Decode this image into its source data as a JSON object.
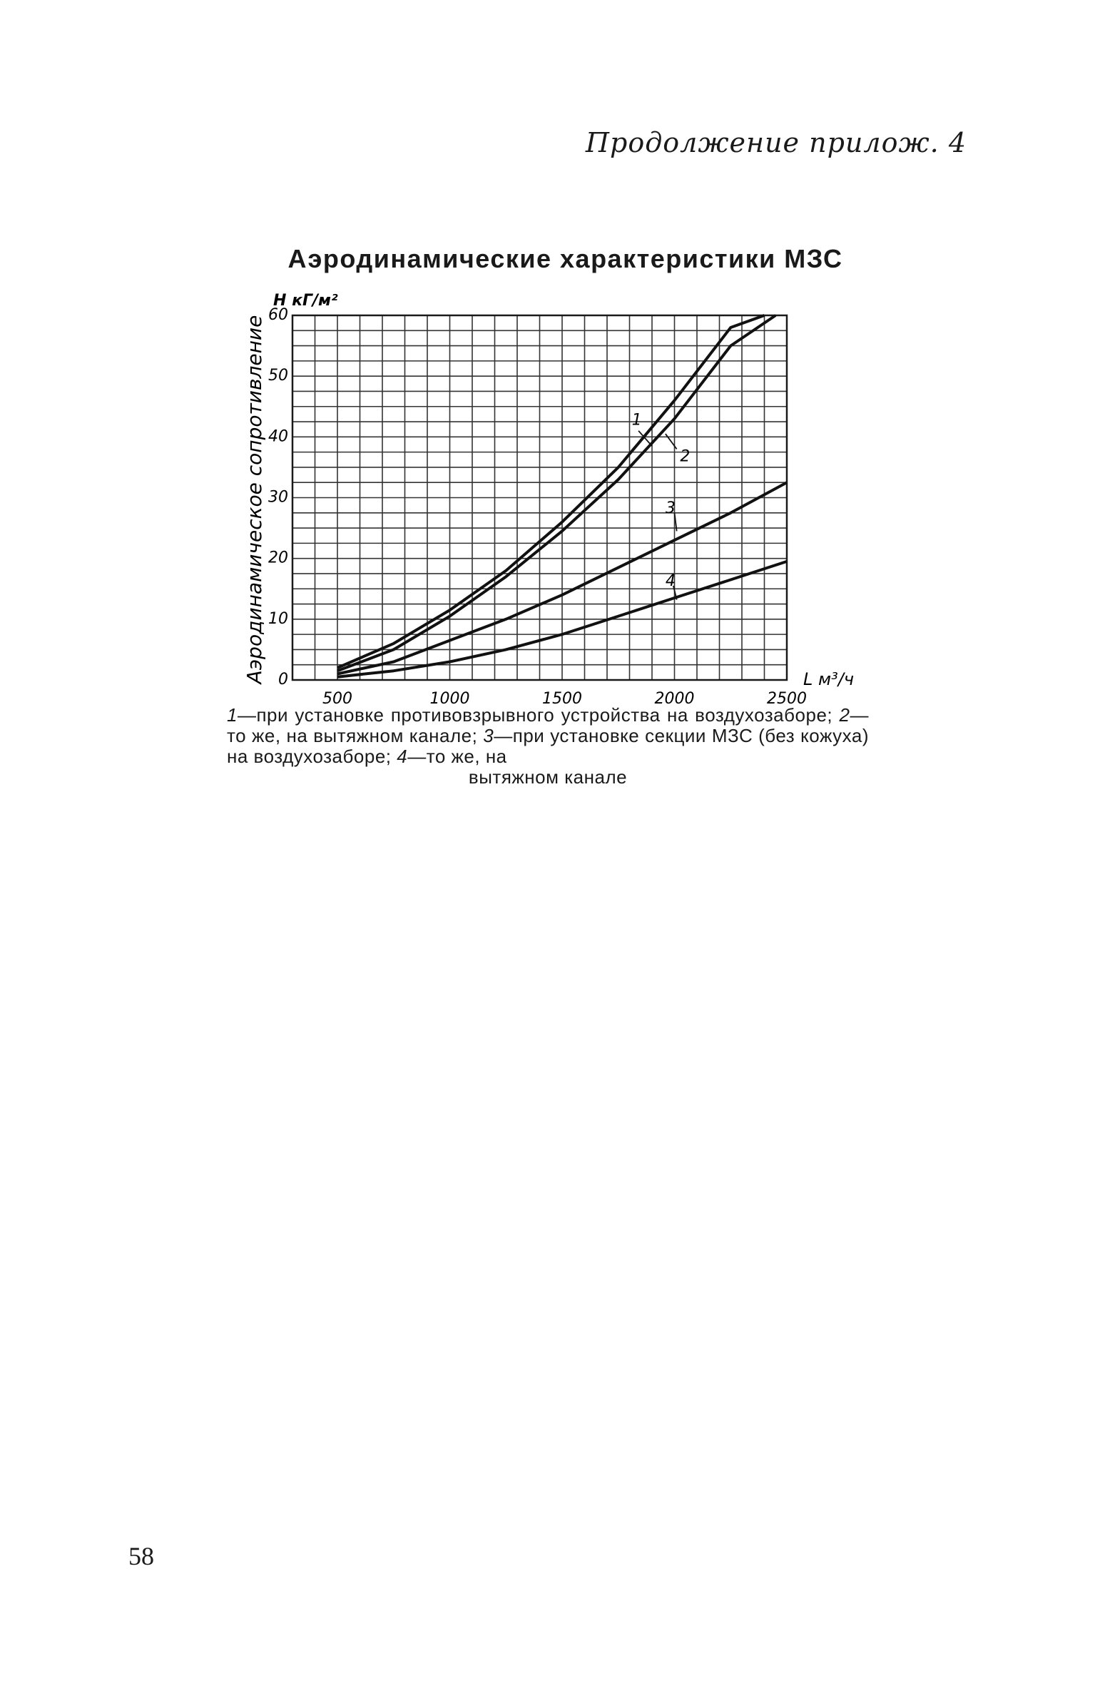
{
  "page": {
    "header": "Продолжение прилож. 4",
    "page_number": "58"
  },
  "caption": {
    "n1": "1",
    "t1": "—при установке противовзрывного устройства на воздухозаборе;",
    "n2": "2",
    "t2": "—то же, на вытяжном канале;",
    "n3": "3",
    "t3": "—при установке секции МЗС (без кожуха) на воздухозаборе;",
    "n4": "4",
    "t4": "—то же, на",
    "last": "вытяжном канале"
  },
  "chart_data": {
    "type": "line",
    "title": "Аэродинамические характеристики МЗС",
    "ylabel": "Аэродинамическое сопротивление",
    "y_unit": "H кГ/м²",
    "x_unit": "L м³/ч",
    "xlim": [
      300,
      2500
    ],
    "ylim": [
      0,
      60
    ],
    "x_tick_labels": [
      "500",
      "1000",
      "1500",
      "2000",
      "2500"
    ],
    "y_tick_labels": [
      "0",
      "10",
      "20",
      "30",
      "40",
      "50",
      "60"
    ],
    "grid": true,
    "series": [
      {
        "name": "1",
        "x": [
          500,
          750,
          1000,
          1250,
          1500,
          1750,
          2000,
          2250,
          2400
        ],
        "y": [
          2,
          6,
          11.5,
          18,
          26,
          35,
          46,
          58,
          60
        ]
      },
      {
        "name": "2",
        "x": [
          500,
          750,
          1000,
          1250,
          1500,
          1750,
          2000,
          2250,
          2450
        ],
        "y": [
          1.5,
          5,
          10.5,
          17,
          24.5,
          33,
          43,
          55,
          60
        ]
      },
      {
        "name": "3",
        "x": [
          500,
          750,
          1000,
          1250,
          1500,
          1750,
          2000,
          2250,
          2500
        ],
        "y": [
          1,
          3,
          6.5,
          10,
          14,
          18.5,
          23,
          27.5,
          32.5
        ]
      },
      {
        "name": "4",
        "x": [
          500,
          750,
          1000,
          1250,
          1500,
          1750,
          2000,
          2250,
          2500
        ],
        "y": [
          0.5,
          1.5,
          3,
          5,
          7.5,
          10.5,
          13.5,
          16.5,
          19.5
        ]
      }
    ]
  }
}
